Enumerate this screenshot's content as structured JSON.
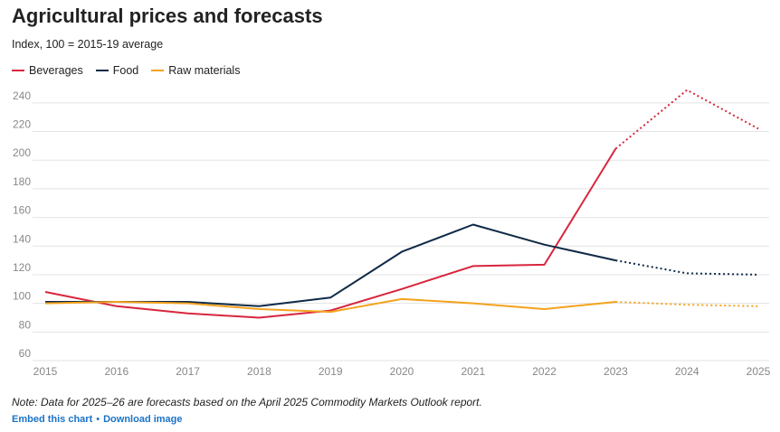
{
  "header": {
    "title": "Agricultural prices and forecasts",
    "subtitle": "Index, 100 = 2015-19 average"
  },
  "footer": {
    "note": "Note: Data for 2025–26 are forecasts based on the April 2025 Commodity Markets Outlook report.",
    "embed_label": "Embed this chart",
    "separator": "•",
    "download_label": "Download image"
  },
  "chart_data": {
    "type": "line",
    "title": "Agricultural prices and forecasts",
    "subtitle": "Index, 100 = 2015-19 average",
    "xlabel": "",
    "ylabel": "",
    "x": [
      2015,
      2016,
      2017,
      2018,
      2019,
      2020,
      2021,
      2022,
      2023,
      2024,
      2025
    ],
    "x_tick_labels": [
      "2015",
      "2016",
      "2017",
      "2018",
      "2019",
      "2020",
      "2021",
      "2022",
      "2023",
      "2024",
      "2025"
    ],
    "ylim": [
      60,
      250
    ],
    "y_ticks": [
      60,
      80,
      100,
      120,
      140,
      160,
      180,
      200,
      220,
      240
    ],
    "y_tick_labels": [
      "60",
      "80",
      "100",
      "120",
      "140",
      "160",
      "180",
      "200",
      "220",
      "240"
    ],
    "grid": "horizontal",
    "legend_position": "top-left",
    "forecast_from": 2023,
    "series": [
      {
        "name": "Beverages",
        "color": "#d7263d",
        "values": [
          108,
          98,
          93,
          90,
          95,
          110,
          126,
          127,
          208,
          249,
          222
        ]
      },
      {
        "name": "Food",
        "color": "#0f2a47",
        "values": [
          101,
          101,
          101,
          98,
          104,
          136,
          155,
          141,
          130,
          121,
          120
        ]
      },
      {
        "name": "Raw materials",
        "color": "#f4a21d",
        "values": [
          100,
          101,
          100,
          96,
          94,
          103,
          100,
          96,
          101,
          99,
          98
        ]
      }
    ]
  }
}
